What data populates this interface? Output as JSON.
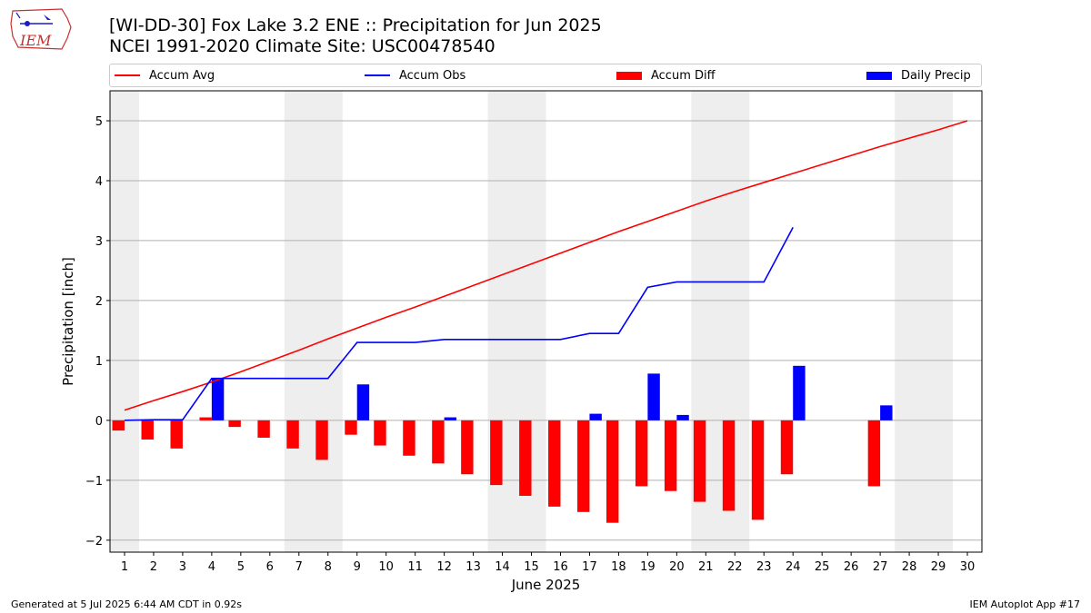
{
  "title_line1": "[WI-DD-30] Fox Lake 3.2 ENE :: Precipitation for Jun 2025",
  "title_line2": "NCEI 1991-2020 Climate Site: USC00478540",
  "footer_left": "Generated at 5 Jul 2025 6:44 AM CDT in 0.92s",
  "footer_right": "IEM Autoplot App #17",
  "logo_text": "IEM",
  "legend": [
    {
      "label": "Accum Avg",
      "kind": "line",
      "color": "#ff0000"
    },
    {
      "label": "Accum Obs",
      "kind": "line",
      "color": "#0000ff"
    },
    {
      "label": "Accum Diff",
      "kind": "bar",
      "color": "#ff0000"
    },
    {
      "label": "Daily Precip",
      "kind": "bar",
      "color": "#0000ff"
    }
  ],
  "chart_data": {
    "type": "bar",
    "xlabel": "June 2025",
    "ylabel": "Precipitation [inch]",
    "ylim": [
      -2.2,
      5.5
    ],
    "yticks": [
      -2,
      -1,
      0,
      1,
      2,
      3,
      4,
      5
    ],
    "ytick_labels": [
      "−2",
      "−1",
      "0",
      "1",
      "2",
      "3",
      "4",
      "5"
    ],
    "x": [
      1,
      2,
      3,
      4,
      5,
      6,
      7,
      8,
      9,
      10,
      11,
      12,
      13,
      14,
      15,
      16,
      17,
      18,
      19,
      20,
      21,
      22,
      23,
      24,
      25,
      26,
      27,
      28,
      29,
      30
    ],
    "grid": "horizontal",
    "weekend_shading": [
      [
        1,
        1
      ],
      [
        7,
        8
      ],
      [
        14,
        15
      ],
      [
        21,
        22
      ],
      [
        28,
        29
      ]
    ],
    "series": [
      {
        "name": "Accum Avg",
        "type": "line",
        "color": "#ff0000",
        "values": [
          0.17,
          0.33,
          0.48,
          0.64,
          0.81,
          0.99,
          1.17,
          1.36,
          1.54,
          1.72,
          1.89,
          2.07,
          2.25,
          2.43,
          2.61,
          2.79,
          2.97,
          3.15,
          3.32,
          3.49,
          3.66,
          3.82,
          3.97,
          4.12,
          4.27,
          4.42,
          4.57,
          4.71,
          4.85,
          5.0
        ]
      },
      {
        "name": "Accum Obs",
        "type": "line",
        "color": "#0000ff",
        "values": [
          0.0,
          0.01,
          0.01,
          0.7,
          0.7,
          0.7,
          0.7,
          0.7,
          1.3,
          1.3,
          1.3,
          1.35,
          1.35,
          1.35,
          1.35,
          1.35,
          1.45,
          1.45,
          2.22,
          2.31,
          2.31,
          2.31,
          2.31,
          3.22,
          null,
          null,
          null,
          null,
          null,
          null
        ]
      },
      {
        "name": "Accum Diff",
        "type": "bar",
        "color": "#ff0000",
        "values": [
          -0.17,
          -0.32,
          -0.47,
          0.05,
          -0.11,
          -0.29,
          -0.47,
          -0.66,
          -0.24,
          -0.42,
          -0.59,
          -0.72,
          -0.9,
          -1.08,
          -1.26,
          -1.44,
          -1.53,
          -1.71,
          -1.1,
          -1.18,
          -1.36,
          -1.51,
          -1.66,
          -0.9,
          null,
          null,
          -1.1,
          null,
          null,
          null
        ]
      },
      {
        "name": "Daily Precip",
        "type": "bar",
        "color": "#0000ff",
        "values": [
          0,
          0,
          0,
          0.69,
          0,
          0,
          0,
          0,
          0.6,
          0,
          0,
          0.05,
          0,
          0,
          0,
          0,
          0.11,
          0,
          0.78,
          0.09,
          0,
          0,
          0,
          0.91,
          0,
          0,
          0.25,
          0,
          0,
          0
        ]
      }
    ]
  }
}
